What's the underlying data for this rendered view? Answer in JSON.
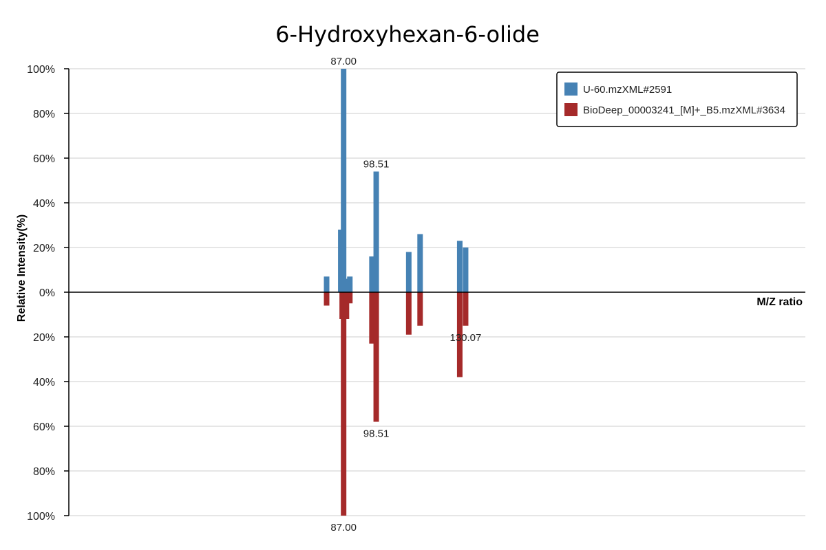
{
  "chart_data": {
    "type": "bar",
    "title": "6-Hydroxyhexan-6-olide",
    "xlabel": "M/Z ratio",
    "ylabel": "Relative Intensity(%)",
    "xlim": [
      -10,
      250
    ],
    "ylim": [
      -100,
      100
    ],
    "yticks": [
      {
        "value": 100,
        "label": "100%"
      },
      {
        "value": 80,
        "label": "80%"
      },
      {
        "value": 60,
        "label": "60%"
      },
      {
        "value": 40,
        "label": "40%"
      },
      {
        "value": 20,
        "label": "20%"
      },
      {
        "value": 0,
        "label": "0%"
      },
      {
        "value": -20,
        "label": "20%"
      },
      {
        "value": -40,
        "label": "40%"
      },
      {
        "value": -60,
        "label": "60%"
      },
      {
        "value": -80,
        "label": "80%"
      },
      {
        "value": -100,
        "label": "100%"
      }
    ],
    "legend_position": "top-right",
    "series": [
      {
        "name": "U-60.mzXML#2591",
        "color": "#4682b4",
        "direction": "up",
        "peaks": [
          {
            "mz": 81.0,
            "intensity": 7
          },
          {
            "mz": 86.0,
            "intensity": 28
          },
          {
            "mz": 86.5,
            "intensity": 5
          },
          {
            "mz": 87.0,
            "intensity": 100
          },
          {
            "mz": 88.0,
            "intensity": 6
          },
          {
            "mz": 89.2,
            "intensity": 7
          },
          {
            "mz": 97.0,
            "intensity": 16
          },
          {
            "mz": 98.51,
            "intensity": 54
          },
          {
            "mz": 110.0,
            "intensity": 18
          },
          {
            "mz": 114.0,
            "intensity": 26
          },
          {
            "mz": 128.0,
            "intensity": 23
          },
          {
            "mz": 130.07,
            "intensity": 20
          }
        ],
        "labels": [
          {
            "mz": 87.0,
            "text": "87.00"
          },
          {
            "mz": 98.51,
            "text": "98.51"
          }
        ]
      },
      {
        "name": "BioDeep_00003241_[M]+_B5.mzXML#3634",
        "color": "#a52a2a",
        "direction": "down",
        "peaks": [
          {
            "mz": 81.0,
            "intensity": 6
          },
          {
            "mz": 86.5,
            "intensity": 12
          },
          {
            "mz": 87.0,
            "intensity": 100
          },
          {
            "mz": 88.0,
            "intensity": 12
          },
          {
            "mz": 89.2,
            "intensity": 5
          },
          {
            "mz": 97.0,
            "intensity": 23
          },
          {
            "mz": 98.0,
            "intensity": 7
          },
          {
            "mz": 98.51,
            "intensity": 58
          },
          {
            "mz": 110.0,
            "intensity": 19
          },
          {
            "mz": 114.0,
            "intensity": 15
          },
          {
            "mz": 128.0,
            "intensity": 38
          },
          {
            "mz": 130.07,
            "intensity": 15
          }
        ],
        "labels": [
          {
            "mz": 130.07,
            "text": "130.07"
          },
          {
            "mz": 98.51,
            "text": "98.51"
          },
          {
            "mz": 87.0,
            "text": "87.00"
          }
        ]
      }
    ]
  }
}
